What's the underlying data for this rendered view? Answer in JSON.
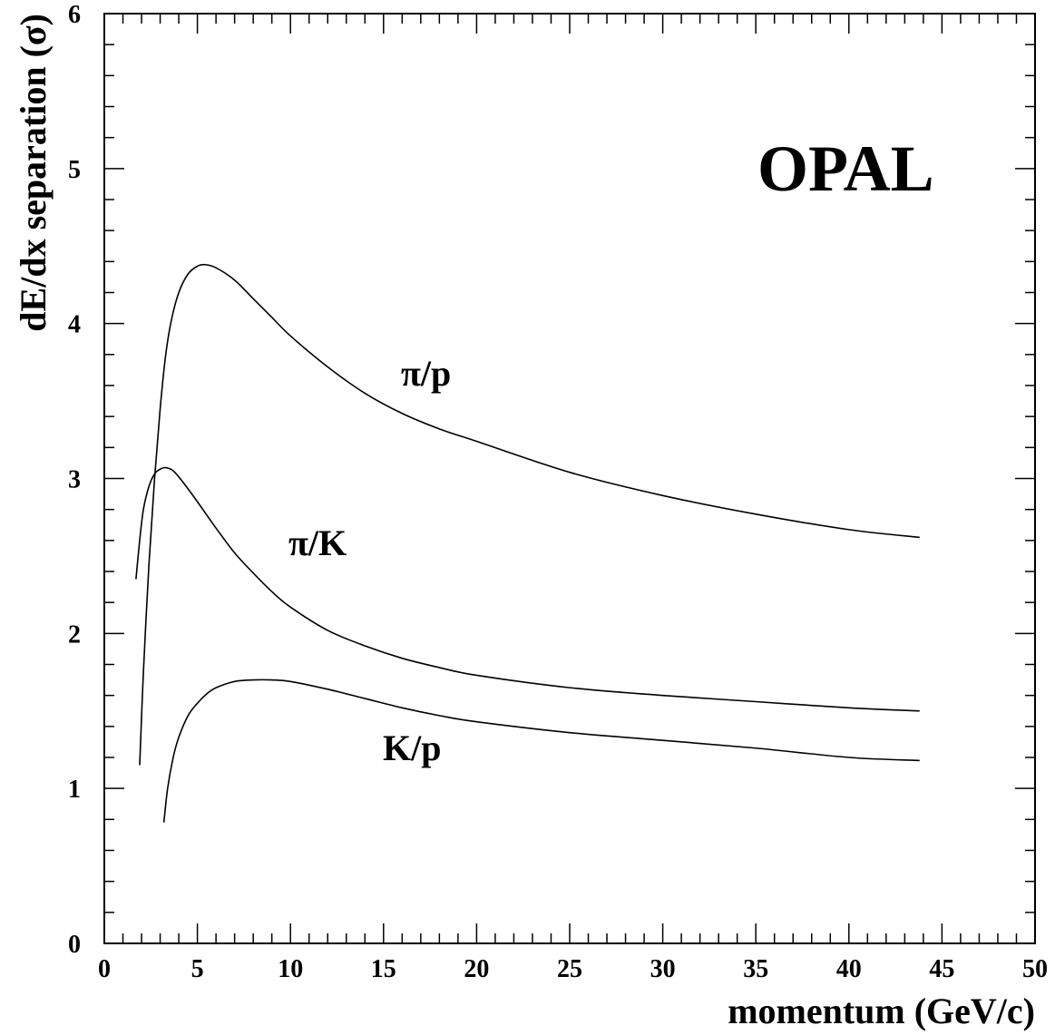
{
  "chart_data": {
    "type": "line",
    "title": "",
    "experiment_label": "OPAL",
    "xlabel": "momentum (GeV/c)",
    "ylabel": "dE/dx separation (σ)",
    "xlim": [
      0,
      50
    ],
    "ylim": [
      0,
      6
    ],
    "x_ticks": [
      0,
      5,
      10,
      15,
      20,
      25,
      30,
      35,
      40,
      45,
      50
    ],
    "y_ticks": [
      0,
      1,
      2,
      3,
      4,
      5,
      6
    ],
    "grid": false,
    "legend": "none",
    "series": [
      {
        "name": "π/p",
        "x": [
          1.9,
          2.1,
          2.4,
          2.7,
          3.0,
          3.3,
          3.6,
          4.0,
          4.5,
          5.0,
          5.4,
          6.0,
          7.0,
          8.0,
          9.0,
          10.0,
          12.0,
          14.0,
          16.0,
          18.0,
          20.0,
          25.0,
          30.0,
          35.0,
          40.0,
          43.8
        ],
        "y": [
          1.15,
          1.75,
          2.45,
          3.0,
          3.45,
          3.8,
          4.02,
          4.2,
          4.32,
          4.37,
          4.38,
          4.36,
          4.28,
          4.16,
          4.04,
          3.92,
          3.72,
          3.55,
          3.42,
          3.32,
          3.24,
          3.04,
          2.89,
          2.77,
          2.67,
          2.62
        ]
      },
      {
        "name": "π/K",
        "x": [
          1.7,
          1.9,
          2.1,
          2.4,
          2.7,
          3.0,
          3.3,
          3.7,
          4.2,
          5.0,
          6.0,
          7.0,
          8.0,
          9.0,
          10.0,
          12.0,
          14.0,
          16.0,
          18.0,
          20.0,
          25.0,
          30.0,
          35.0,
          40.0,
          43.8
        ],
        "y": [
          2.35,
          2.6,
          2.8,
          2.95,
          3.03,
          3.06,
          3.07,
          3.05,
          2.98,
          2.85,
          2.68,
          2.52,
          2.39,
          2.27,
          2.17,
          2.02,
          1.92,
          1.84,
          1.78,
          1.73,
          1.65,
          1.6,
          1.56,
          1.52,
          1.5
        ]
      },
      {
        "name": "K/p",
        "x": [
          3.2,
          3.4,
          3.7,
          4.0,
          4.5,
          5.0,
          5.5,
          6.0,
          7.0,
          8.0,
          9.0,
          10.0,
          12.0,
          14.0,
          16.0,
          18.0,
          20.0,
          25.0,
          30.0,
          35.0,
          40.0,
          43.8
        ],
        "y": [
          0.78,
          1.0,
          1.2,
          1.33,
          1.47,
          1.55,
          1.61,
          1.65,
          1.69,
          1.7,
          1.7,
          1.69,
          1.64,
          1.58,
          1.52,
          1.47,
          1.43,
          1.36,
          1.31,
          1.26,
          1.2,
          1.18
        ]
      }
    ]
  }
}
